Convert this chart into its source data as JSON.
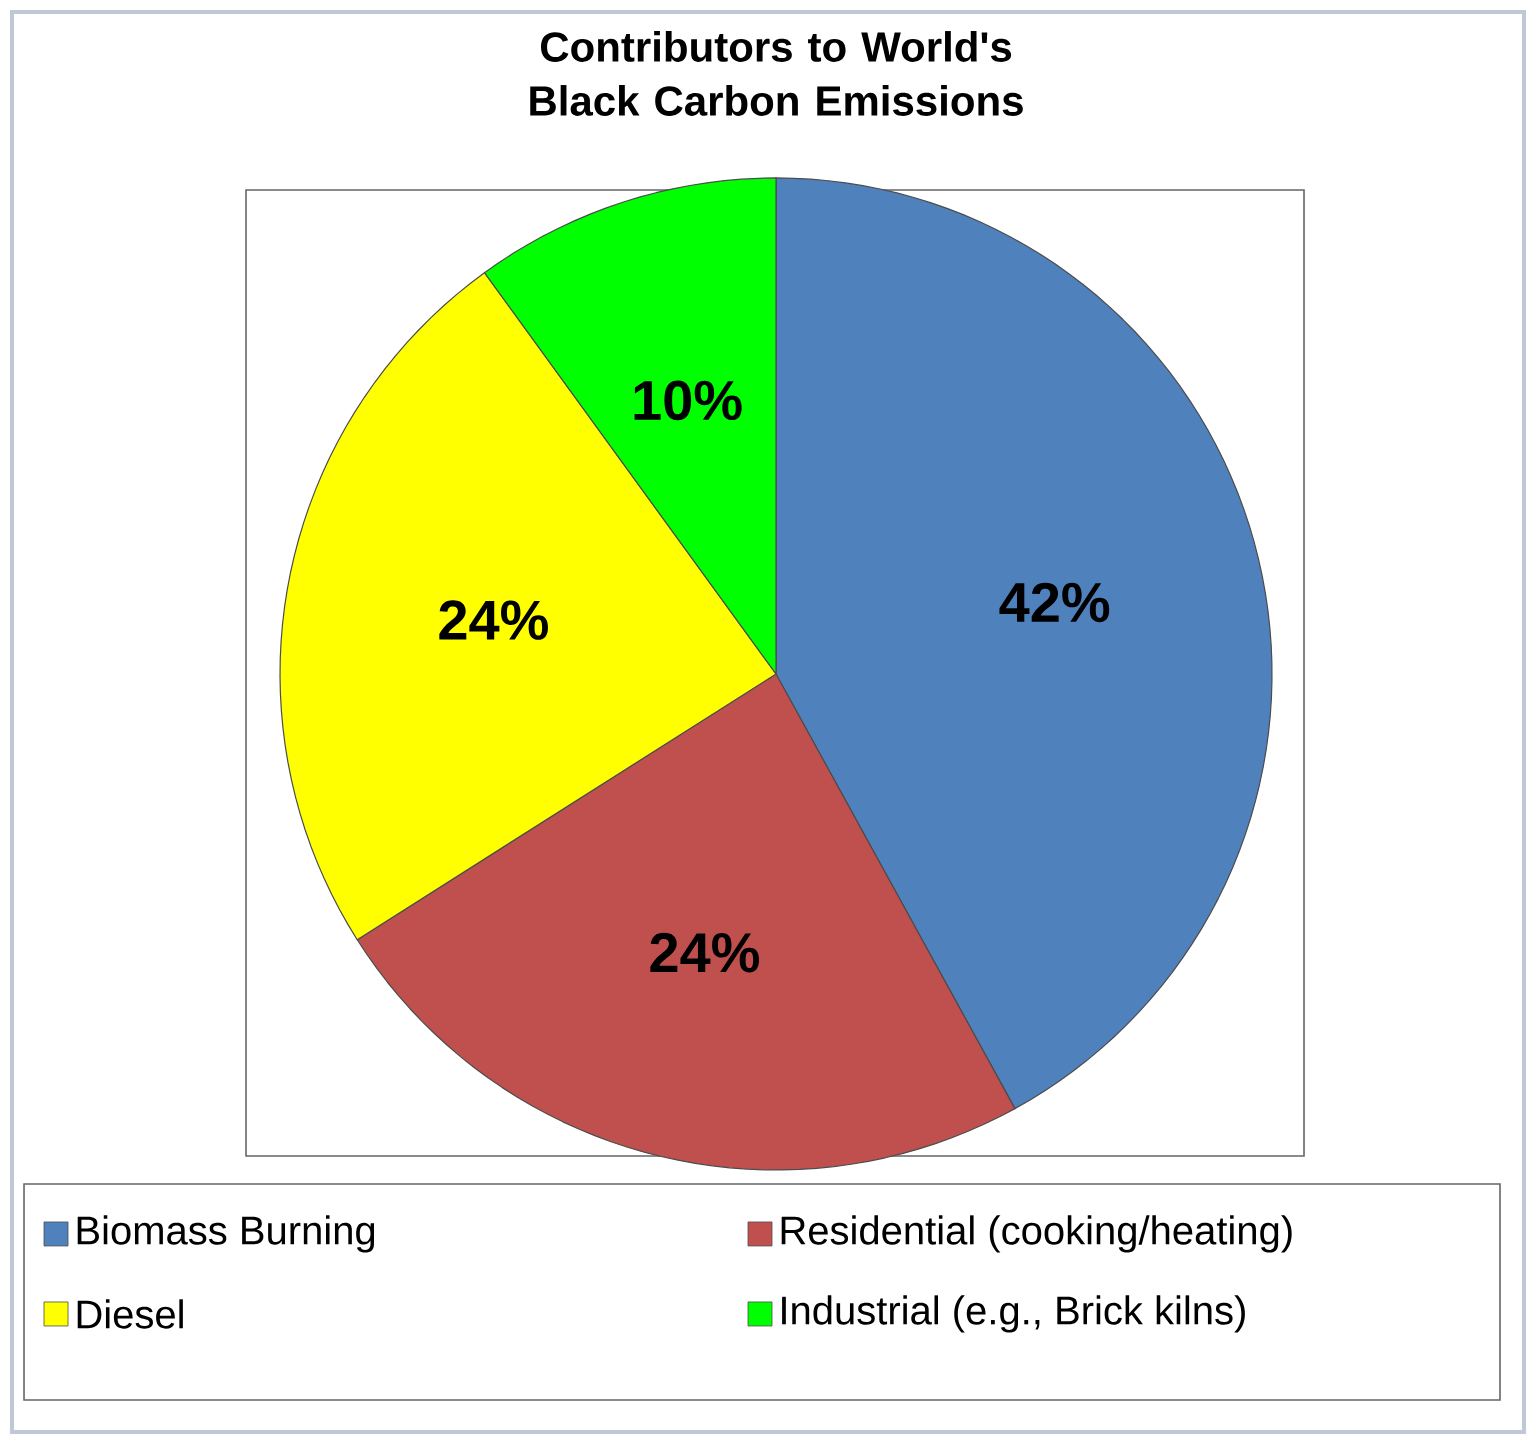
{
  "chart_data": {
    "type": "pie",
    "title": "Contributors to World's Black Carbon Emissions",
    "categories": [
      "Biomass Burning",
      "Residential (cooking/heating)",
      "Diesel",
      "Industrial (e.g., Brick kilns)"
    ],
    "values": [
      42,
      24,
      24,
      10
    ],
    "value_labels": [
      "42%",
      "24%",
      "24%",
      "10%"
    ],
    "colors": [
      "#4f81bd",
      "#c0504d",
      "#ffff00",
      "#00ff00"
    ],
    "legend": "bottom"
  }
}
